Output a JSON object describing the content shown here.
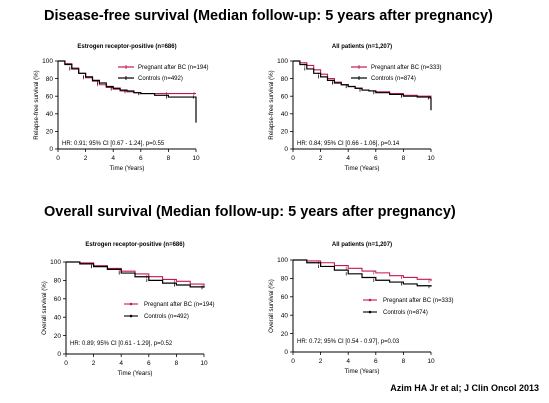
{
  "section1_title": "Disease-free survival (Median follow-up: 5 years after pregnancy)",
  "section2_title": "Overall  survival (Median follow-up: 5 years after pregnancy)",
  "citation": "Azim HA Jr et al; J Clin Oncol 2013",
  "colors": {
    "pregnant": "#c2185b",
    "controls": "#000000"
  },
  "chart_data": [
    {
      "type": "line",
      "section": "Disease-free survival",
      "title": "Estrogen receptor-positive (n=686)",
      "xlabel": "Time (Years)",
      "ylabel": "Relapse-free survival (%)",
      "xlim": [
        0,
        10
      ],
      "ylim": [
        0,
        100
      ],
      "xticks": [
        0,
        2,
        4,
        6,
        8,
        10
      ],
      "yticks": [
        0,
        20,
        40,
        60,
        80,
        100
      ],
      "legend_position": "top-right",
      "annotation": "HR: 0.91; 95% CI [0.67 - 1.24], p=0.55",
      "series": [
        {
          "name": "Pregnant after BC (n=194)",
          "color": "#c2185b",
          "x": [
            0,
            0.5,
            1,
            1.5,
            2,
            2.5,
            3,
            3.5,
            4,
            4.5,
            5,
            5.5,
            6,
            7,
            8,
            9,
            10
          ],
          "y": [
            100,
            97,
            92,
            86,
            81,
            77,
            73,
            70,
            68,
            66,
            65,
            64,
            63,
            63,
            63,
            63,
            63
          ]
        },
        {
          "name": "Controls (n=492)",
          "color": "#000000",
          "x": [
            0,
            0.5,
            1,
            1.5,
            2,
            2.5,
            3,
            3.5,
            4,
            4.5,
            5,
            5.5,
            6,
            7,
            8,
            9,
            9.95,
            10
          ],
          "y": [
            100,
            96,
            91,
            86,
            82,
            78,
            75,
            71,
            69,
            67,
            66,
            64,
            63,
            61,
            59,
            59,
            59,
            30
          ]
        }
      ]
    },
    {
      "type": "line",
      "section": "Disease-free survival",
      "title": "All patients (n=1,207)",
      "xlabel": "Time (Years)",
      "ylabel": "Relapse-free survival (%)",
      "xlim": [
        0,
        10
      ],
      "ylim": [
        0,
        100
      ],
      "xticks": [
        0,
        2,
        4,
        6,
        8,
        10
      ],
      "yticks": [
        0,
        20,
        40,
        60,
        80,
        100
      ],
      "legend_position": "top-right",
      "annotation": "HR: 0.84; 95% CI [0.66 - 1.06], p=0.14",
      "series": [
        {
          "name": "Pregnant after BC (n=333)",
          "color": "#c2185b",
          "x": [
            0,
            0.5,
            1,
            1.5,
            2,
            2.5,
            3,
            3.5,
            4,
            4.5,
            5,
            5.5,
            6,
            7,
            8,
            9,
            10
          ],
          "y": [
            100,
            98,
            95,
            90,
            85,
            80,
            76,
            73,
            71,
            69,
            67,
            66,
            65,
            63,
            61,
            60,
            59
          ]
        },
        {
          "name": "Controls (n=874)",
          "color": "#000000",
          "x": [
            0,
            0.5,
            1,
            1.5,
            2,
            2.5,
            3,
            3.5,
            4,
            4.5,
            5,
            5.5,
            6,
            7,
            8,
            9,
            9.95,
            10
          ],
          "y": [
            100,
            96,
            91,
            86,
            82,
            78,
            75,
            73,
            71,
            69,
            67,
            66,
            64,
            62,
            60,
            59,
            58,
            44
          ]
        }
      ]
    },
    {
      "type": "line",
      "section": "Overall survival",
      "title": "Estrogen receptor-positive (n=686)",
      "xlabel": "Time (Years)",
      "ylabel": "Overall survival (%)",
      "xlim": [
        0,
        10
      ],
      "ylim": [
        0,
        100
      ],
      "xticks": [
        0,
        2,
        4,
        6,
        8,
        10
      ],
      "yticks": [
        0,
        20,
        40,
        60,
        80,
        100
      ],
      "legend_position": "center-right",
      "annotation": "HR: 0.89; 95% CI [0.61 - 1.29], p=0.52",
      "series": [
        {
          "name": "Pregnant after BC (n=194)",
          "color": "#c2185b",
          "x": [
            0,
            1,
            2,
            3,
            4,
            5,
            6,
            7,
            8,
            9,
            10
          ],
          "y": [
            100,
            99,
            96,
            93,
            90,
            87,
            84,
            81,
            79,
            76,
            73
          ]
        },
        {
          "name": "Controls (n=492)",
          "color": "#000000",
          "x": [
            0,
            1,
            2,
            3,
            4,
            5,
            6,
            7,
            8,
            9,
            10
          ],
          "y": [
            100,
            98,
            95,
            92,
            88,
            84,
            80,
            77,
            75,
            73,
            72
          ]
        }
      ]
    },
    {
      "type": "line",
      "section": "Overall survival",
      "title": "All patients (n=1,207)",
      "xlabel": "Time (Years)",
      "ylabel": "Overall survival (%)",
      "xlim": [
        0,
        10
      ],
      "ylim": [
        0,
        100
      ],
      "xticks": [
        0,
        2,
        4,
        6,
        8,
        10
      ],
      "yticks": [
        0,
        20,
        40,
        60,
        80,
        100
      ],
      "legend_position": "center-right",
      "annotation": "HR: 0.72; 95% CI [0.54 - 0.97], p=0.03",
      "series": [
        {
          "name": "Pregnant after BC (n=333)",
          "color": "#c2185b",
          "x": [
            0,
            1,
            2,
            3,
            4,
            5,
            6,
            7,
            8,
            9,
            10
          ],
          "y": [
            100,
            99,
            97,
            94,
            91,
            88,
            86,
            83,
            81,
            79,
            77
          ]
        },
        {
          "name": "Controls (n=874)",
          "color": "#000000",
          "x": [
            0,
            1,
            2,
            3,
            4,
            5,
            6,
            7,
            8,
            9,
            10
          ],
          "y": [
            100,
            97,
            93,
            89,
            85,
            81,
            78,
            76,
            74,
            72,
            71
          ]
        }
      ]
    }
  ]
}
